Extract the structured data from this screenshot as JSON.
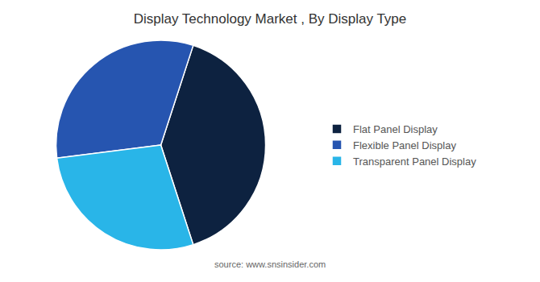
{
  "chart_data": {
    "type": "pie",
    "title": "Display Technology Market , By Display Type",
    "categories": [
      "Flat Panel Display",
      "Flexible Panel Display",
      "Transparent Panel Display"
    ],
    "values": [
      40,
      32,
      28
    ],
    "colors": [
      "#0d2240",
      "#2655b0",
      "#29b5e8"
    ],
    "annotations": [
      "source: www.snsinsider.com"
    ],
    "legend": "right"
  }
}
